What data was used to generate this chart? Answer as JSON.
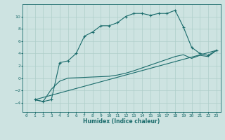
{
  "xlabel": "Humidex (Indice chaleur)",
  "bg_color": "#cde3e1",
  "line_color": "#1a6b6b",
  "grid_color": "#aececa",
  "xlim": [
    -0.5,
    23.5
  ],
  "ylim": [
    -5.5,
    12
  ],
  "xticks": [
    0,
    1,
    2,
    3,
    4,
    5,
    6,
    7,
    8,
    9,
    10,
    11,
    12,
    13,
    14,
    15,
    16,
    17,
    18,
    19,
    20,
    21,
    22,
    23
  ],
  "yticks": [
    -4,
    -2,
    0,
    2,
    4,
    6,
    8,
    10
  ],
  "line1_x": [
    1,
    2,
    3,
    4,
    5,
    6,
    7,
    8,
    9,
    10,
    11,
    12,
    13,
    14,
    15,
    16,
    17,
    18,
    19,
    20,
    21,
    22,
    23
  ],
  "line1_y": [
    -3.5,
    -3.8,
    -3.5,
    2.5,
    2.8,
    4.0,
    6.8,
    7.5,
    8.5,
    8.5,
    9.0,
    10.0,
    10.5,
    10.5,
    10.2,
    10.5,
    10.5,
    11.0,
    8.3,
    5.0,
    4.0,
    3.7,
    4.5
  ],
  "line2_x": [
    1,
    2,
    3,
    4,
    5,
    10,
    11,
    12,
    13,
    18,
    19,
    20,
    21,
    22,
    23
  ],
  "line2_y": [
    -3.5,
    -3.8,
    -1.8,
    -0.5,
    0.0,
    0.3,
    0.5,
    0.8,
    1.2,
    3.5,
    3.8,
    3.2,
    3.7,
    3.5,
    4.5
  ],
  "line3_x": [
    1,
    23
  ],
  "line3_y": [
    -3.5,
    4.5
  ],
  "xlabel_fontsize": 5.5,
  "tick_fontsize": 4.5
}
